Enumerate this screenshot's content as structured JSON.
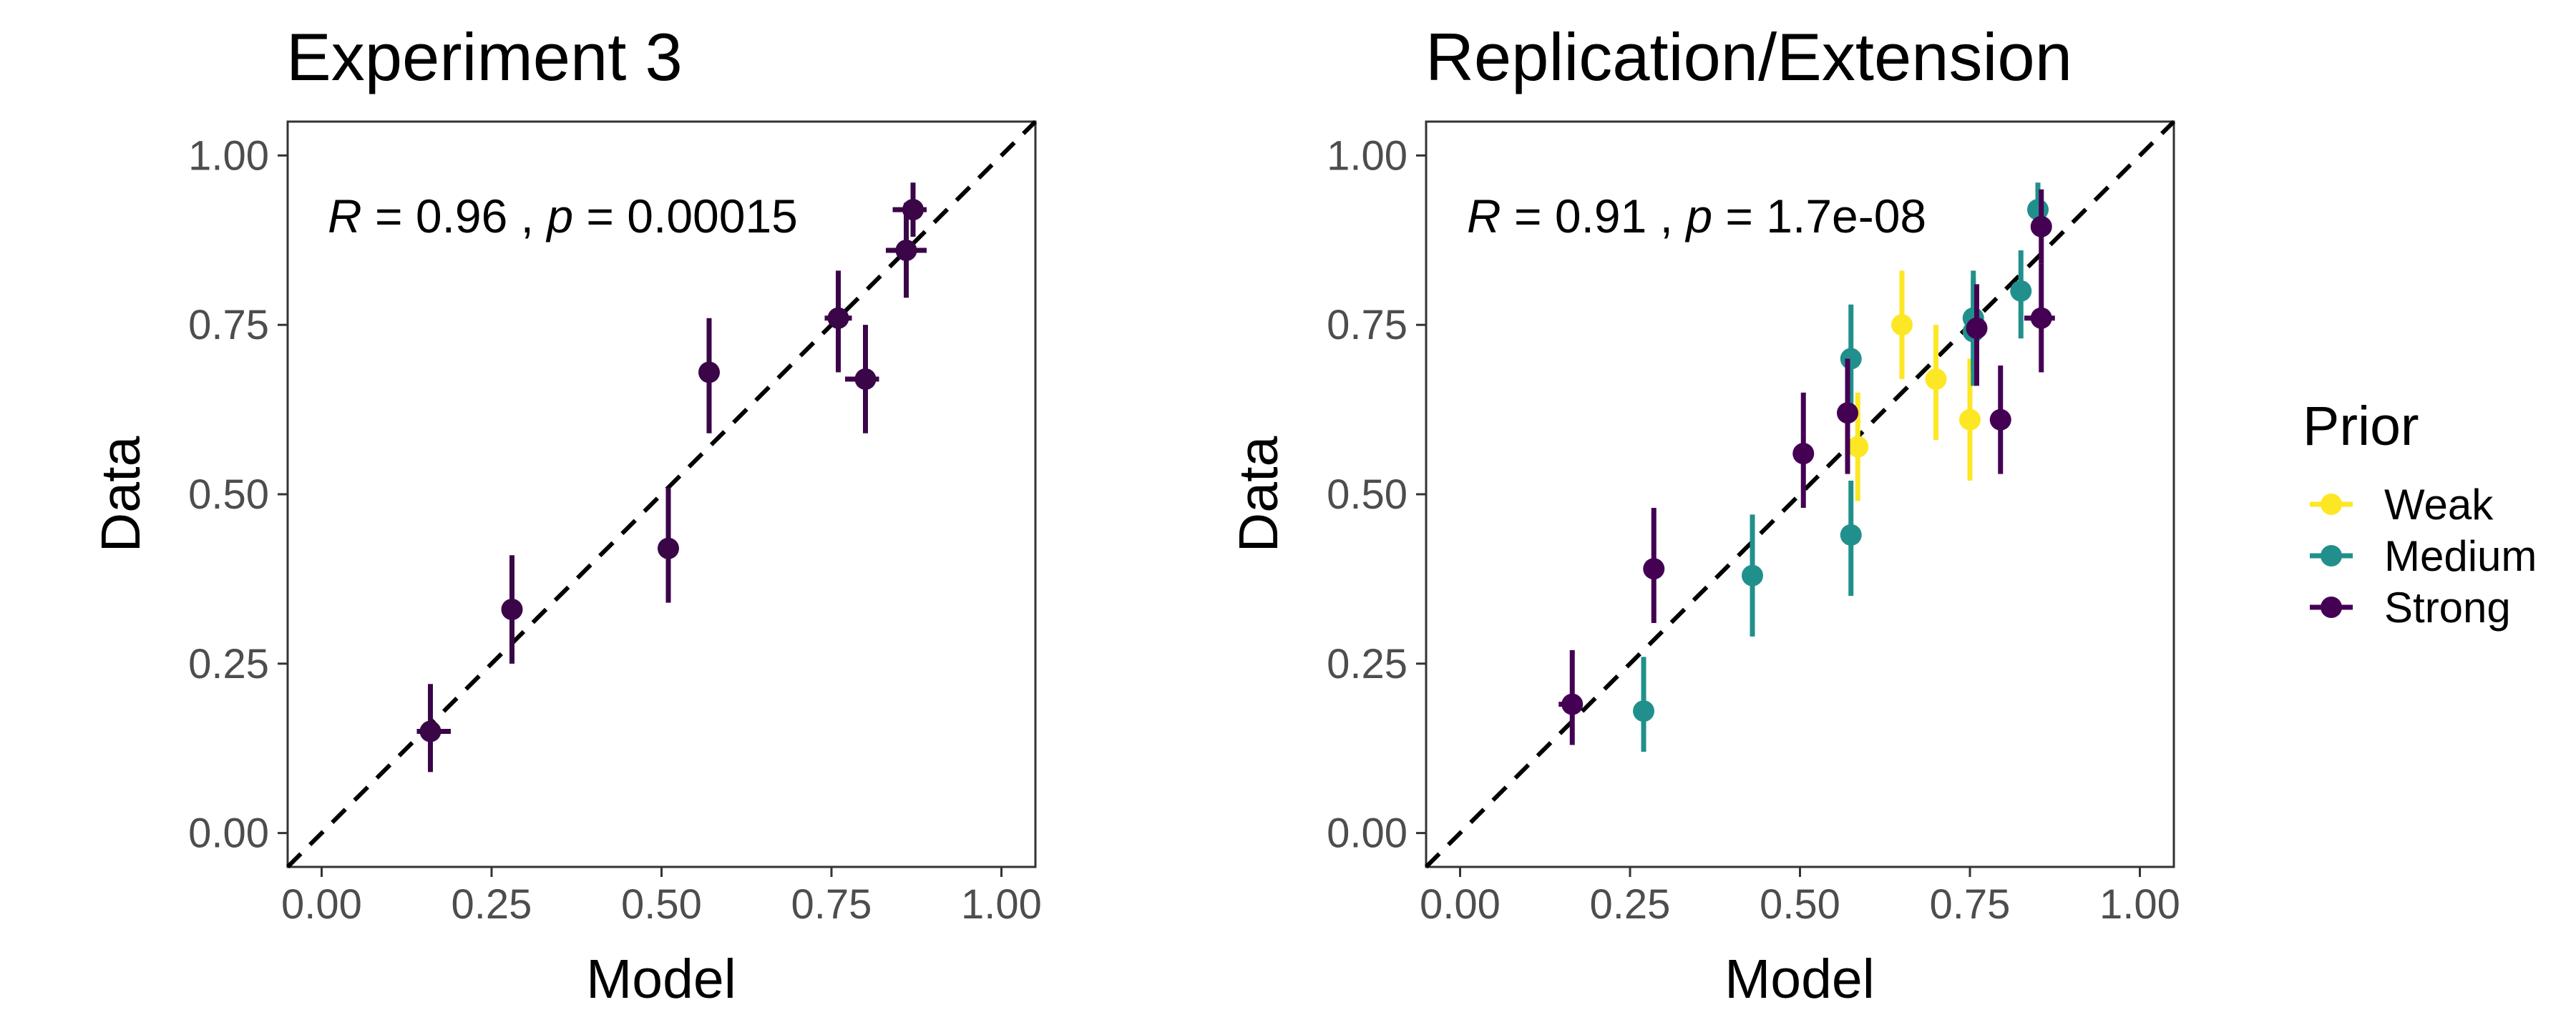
{
  "chart_data": [
    {
      "type": "scatter",
      "title": "Experiment 3",
      "xlabel": "Model",
      "ylabel": "Data",
      "xlim": [
        -0.05,
        1.05
      ],
      "ylim": [
        -0.05,
        1.05
      ],
      "x_ticks": [
        "0.00",
        "0.25",
        "0.50",
        "0.75",
        "1.00"
      ],
      "y_ticks": [
        "0.00",
        "0.25",
        "0.50",
        "0.75",
        "1.00"
      ],
      "reference_line": "y = x (dashed)",
      "grid": false,
      "annotation": {
        "r_label": "R",
        "r_text": " = 0.96 , ",
        "p_label": "p",
        "p_text": " = 0.00015"
      },
      "series": [
        {
          "name": "Strong",
          "points": [
            {
              "x": 0.16,
              "y": 0.15,
              "ylo": 0.09,
              "yhi": 0.22,
              "xlo": 0.14,
              "xhi": 0.19
            },
            {
              "x": 0.28,
              "y": 0.33,
              "ylo": 0.25,
              "yhi": 0.41
            },
            {
              "x": 0.51,
              "y": 0.42,
              "ylo": 0.34,
              "yhi": 0.51
            },
            {
              "x": 0.57,
              "y": 0.68,
              "ylo": 0.59,
              "yhi": 0.76
            },
            {
              "x": 0.76,
              "y": 0.76,
              "ylo": 0.68,
              "yhi": 0.83,
              "xlo": 0.74,
              "xhi": 0.78
            },
            {
              "x": 0.8,
              "y": 0.67,
              "ylo": 0.59,
              "yhi": 0.75,
              "xlo": 0.77,
              "xhi": 0.82
            },
            {
              "x": 0.86,
              "y": 0.86,
              "ylo": 0.79,
              "yhi": 0.93,
              "xlo": 0.83,
              "xhi": 0.89
            },
            {
              "x": 0.87,
              "y": 0.92,
              "ylo": 0.88,
              "yhi": 0.96,
              "xlo": 0.84,
              "xhi": 0.89
            }
          ]
        }
      ]
    },
    {
      "type": "scatter",
      "title": "Replication/Extension",
      "xlabel": "Model",
      "ylabel": "Data",
      "xlim": [
        -0.05,
        1.05
      ],
      "ylim": [
        -0.05,
        1.05
      ],
      "x_ticks": [
        "0.00",
        "0.25",
        "0.50",
        "0.75",
        "1.00"
      ],
      "y_ticks": [
        "0.00",
        "0.25",
        "0.50",
        "0.75",
        "1.00"
      ],
      "reference_line": "y = x (dashed)",
      "grid": false,
      "annotation": {
        "r_label": "R",
        "r_text": " = 0.91 , ",
        "p_label": "p",
        "p_text": " = 1.7e-08"
      },
      "series": [
        {
          "name": "Weak",
          "points": [
            {
              "x": 0.585,
              "y": 0.57,
              "ylo": 0.49,
              "yhi": 0.65
            },
            {
              "x": 0.65,
              "y": 0.75,
              "ylo": 0.67,
              "yhi": 0.83
            },
            {
              "x": 0.7,
              "y": 0.67,
              "ylo": 0.58,
              "yhi": 0.75
            },
            {
              "x": 0.75,
              "y": 0.61,
              "ylo": 0.52,
              "yhi": 0.7
            }
          ]
        },
        {
          "name": "Medium",
          "points": [
            {
              "x": 0.27,
              "y": 0.18,
              "ylo": 0.12,
              "yhi": 0.26
            },
            {
              "x": 0.43,
              "y": 0.38,
              "ylo": 0.29,
              "yhi": 0.47
            },
            {
              "x": 0.575,
              "y": 0.7,
              "ylo": 0.62,
              "yhi": 0.78
            },
            {
              "x": 0.575,
              "y": 0.44,
              "ylo": 0.35,
              "yhi": 0.52
            },
            {
              "x": 0.755,
              "y": 0.76,
              "ylo": 0.68,
              "yhi": 0.83
            },
            {
              "x": 0.755,
              "y": 0.74,
              "ylo": 0.66,
              "yhi": 0.82
            },
            {
              "x": 0.825,
              "y": 0.8,
              "ylo": 0.73,
              "yhi": 0.86
            },
            {
              "x": 0.85,
              "y": 0.92,
              "ylo": 0.89,
              "yhi": 0.96,
              "xlo": 0.835,
              "xhi": 0.865
            }
          ]
        },
        {
          "name": "Strong",
          "points": [
            {
              "x": 0.165,
              "y": 0.19,
              "ylo": 0.13,
              "yhi": 0.27,
              "xlo": 0.145,
              "xhi": 0.18
            },
            {
              "x": 0.285,
              "y": 0.39,
              "ylo": 0.31,
              "yhi": 0.48
            },
            {
              "x": 0.505,
              "y": 0.56,
              "ylo": 0.48,
              "yhi": 0.65
            },
            {
              "x": 0.57,
              "y": 0.62,
              "ylo": 0.53,
              "yhi": 0.7
            },
            {
              "x": 0.76,
              "y": 0.745,
              "ylo": 0.66,
              "yhi": 0.81
            },
            {
              "x": 0.795,
              "y": 0.61,
              "ylo": 0.53,
              "yhi": 0.69
            },
            {
              "x": 0.855,
              "y": 0.895,
              "ylo": 0.84,
              "yhi": 0.95
            },
            {
              "x": 0.855,
              "y": 0.76,
              "ylo": 0.68,
              "yhi": 0.84,
              "xlo": 0.83,
              "xhi": 0.875
            }
          ]
        }
      ]
    }
  ],
  "legend": {
    "title": "Prior",
    "items": [
      {
        "label": "Weak",
        "color": "#FDE725"
      },
      {
        "label": "Medium",
        "color": "#21908C"
      },
      {
        "label": "Strong",
        "color": "#440154"
      }
    ]
  },
  "colors": {
    "Weak": "#FDE725",
    "Medium": "#21908C",
    "Strong": "#440154",
    "single_series": "#3A0648",
    "panel_border": "#333333",
    "tick_text": "#4D4D4D"
  }
}
